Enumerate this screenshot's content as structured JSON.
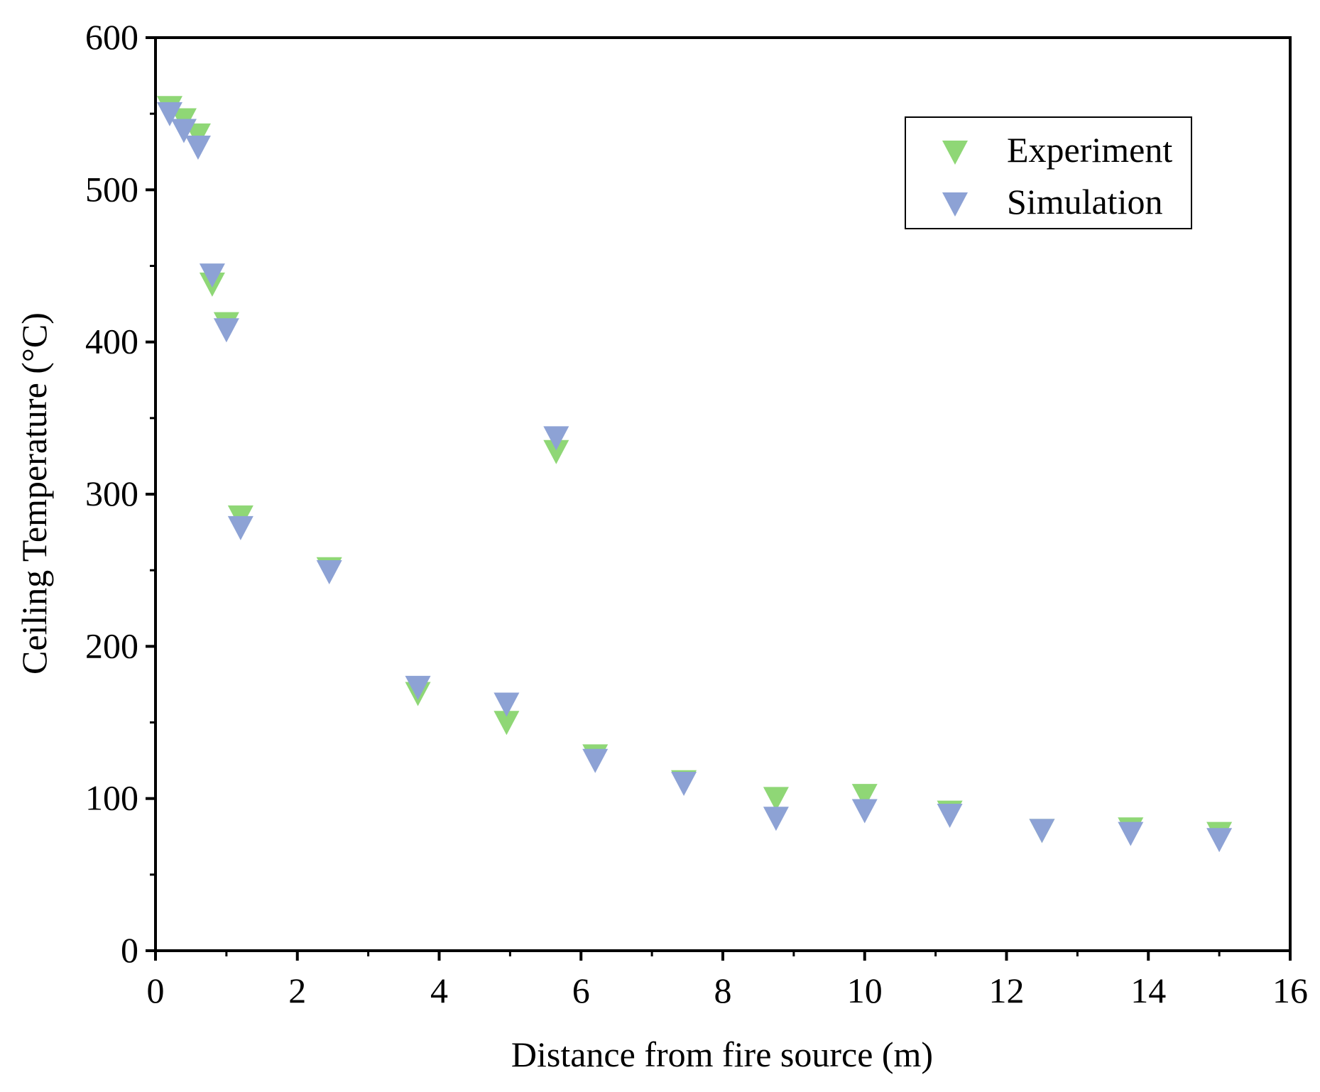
{
  "chart_data": {
    "type": "scatter",
    "title": "",
    "xlabel": "Distance from fire source (m)",
    "ylabel": "Ceiling Temperature (°C)",
    "xlim": [
      0,
      16
    ],
    "ylim": [
      0,
      600
    ],
    "xticks": [
      0,
      2,
      4,
      6,
      8,
      10,
      12,
      14,
      16
    ],
    "yticks": [
      0,
      100,
      200,
      300,
      400,
      500,
      600
    ],
    "xtick_labels": [
      "0",
      "2",
      "4",
      "6",
      "8",
      "10",
      "12",
      "14",
      "16"
    ],
    "ytick_labels": [
      "0",
      "100",
      "200",
      "300",
      "400",
      "500",
      "600"
    ],
    "grid": false,
    "legend_position": "top-right",
    "marker": "triangle-down",
    "series": [
      {
        "name": "Experiment",
        "color": "#8fd776",
        "x": [
          0.2,
          0.4,
          0.6,
          0.8,
          1.0,
          1.2,
          2.45,
          3.7,
          4.95,
          5.65,
          6.2,
          7.45,
          8.75,
          10.0,
          11.2,
          12.5,
          13.75,
          15.0
        ],
        "y": [
          556,
          548,
          538,
          440,
          414,
          287,
          253,
          171,
          152,
          330,
          130,
          113,
          102,
          104,
          93,
          81,
          82,
          79
        ]
      },
      {
        "name": "Simulation",
        "color": "#8da2d5",
        "x": [
          0.2,
          0.4,
          0.6,
          0.8,
          1.0,
          1.2,
          2.45,
          3.7,
          4.95,
          5.65,
          6.2,
          7.45,
          8.75,
          10.0,
          11.2,
          12.5,
          13.75,
          15.0
        ],
        "y": [
          552,
          541,
          530,
          446,
          410,
          280,
          251,
          175,
          164,
          339,
          127,
          112,
          89,
          94,
          91,
          81,
          79,
          75
        ]
      }
    ]
  }
}
